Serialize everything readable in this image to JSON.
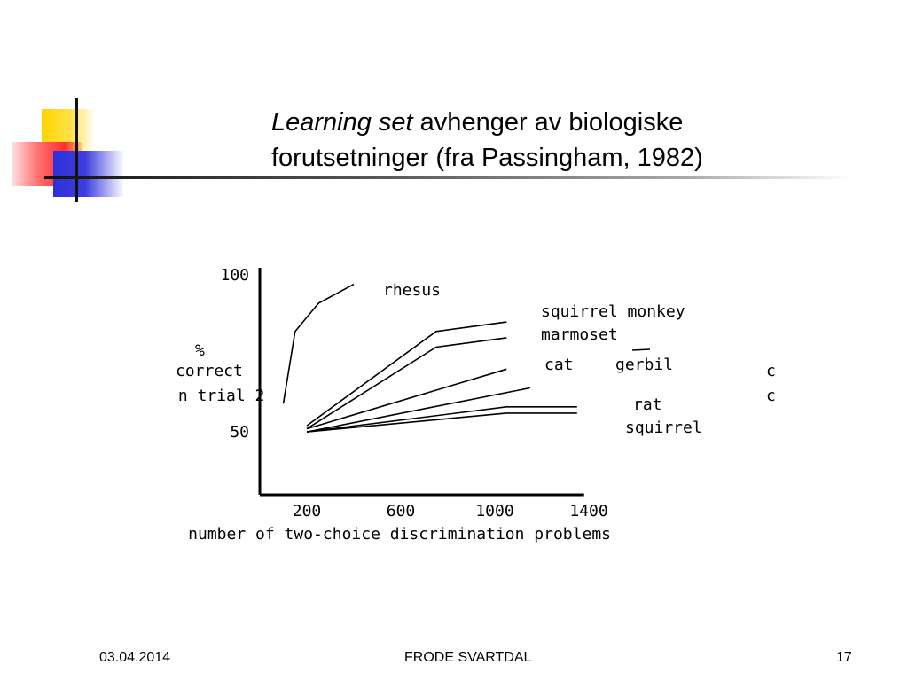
{
  "slide": {
    "title_italic": "Learning set",
    "title_rest": " avhenger av biologiske",
    "title_line2": "forutsetninger (fra Passingham, 1982)"
  },
  "footer": {
    "date": "03.04.2014",
    "author": "FRODE SVARTDAL",
    "page": "17"
  },
  "chart_data": {
    "type": "line",
    "title": "",
    "xlabel": "number of two-choice discrimination problems",
    "ylabel_lines": [
      "%",
      "correct",
      "on trial 2"
    ],
    "x_ticks": [
      200,
      600,
      1000,
      1400
    ],
    "y_ticks": [
      50,
      100
    ],
    "xlim": [
      0,
      1500
    ],
    "ylim": [
      30,
      100
    ],
    "series": [
      {
        "name": "rhesus",
        "points": [
          [
            100,
            59
          ],
          [
            150,
            82
          ],
          [
            250,
            91
          ],
          [
            400,
            97
          ]
        ]
      },
      {
        "name": "squirrel monkey",
        "points": [
          [
            200,
            52
          ],
          [
            750,
            82
          ],
          [
            1050,
            85
          ]
        ]
      },
      {
        "name": "marmoset",
        "points": [
          [
            200,
            51
          ],
          [
            750,
            77
          ],
          [
            1050,
            80
          ]
        ]
      },
      {
        "name": "cat",
        "points": [
          [
            200,
            51
          ],
          [
            1050,
            70
          ]
        ]
      },
      {
        "name": "gerbil",
        "points": [
          [
            200,
            50
          ],
          [
            1150,
            64
          ]
        ]
      },
      {
        "name": "rat",
        "points": [
          [
            200,
            50
          ],
          [
            1050,
            58
          ],
          [
            1350,
            58
          ]
        ]
      },
      {
        "name": "squirrel",
        "points": [
          [
            200,
            50
          ],
          [
            1050,
            56
          ],
          [
            1350,
            56
          ]
        ]
      }
    ]
  }
}
